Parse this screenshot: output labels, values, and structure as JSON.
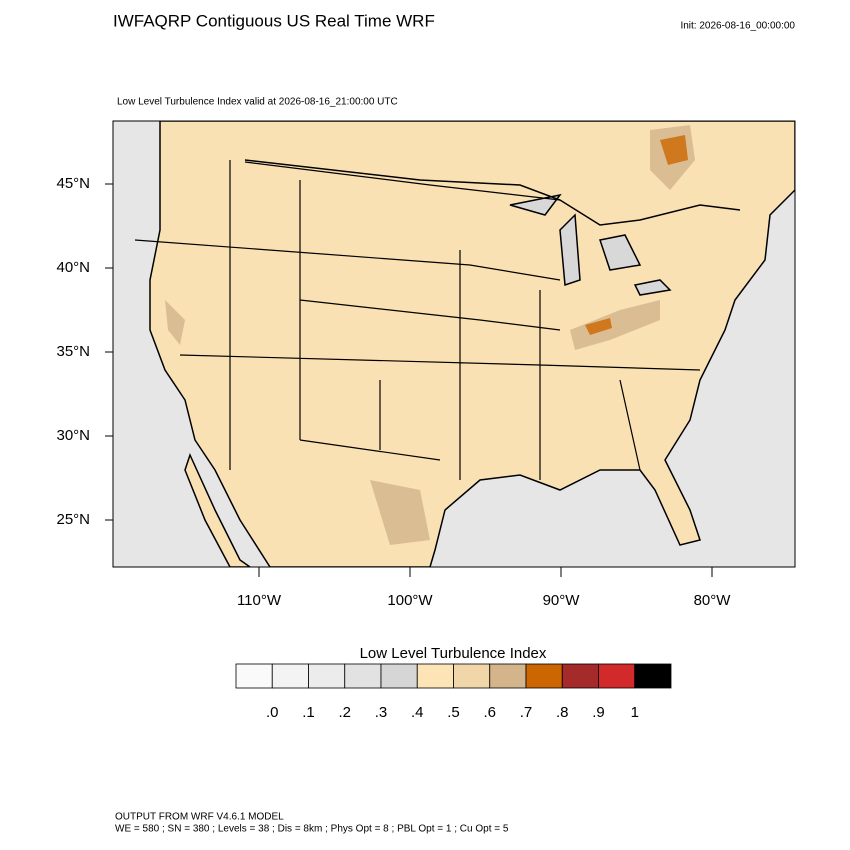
{
  "header": {
    "title": "IWFAQRP Contiguous US Real Time WRF",
    "init": "Init: 2026-08-16_00:00:00",
    "subtitle": "Low Level Turbulence Index valid at 2026-08-16_21:00:00 UTC"
  },
  "map": {
    "lat_labels": [
      "45°N",
      "40°N",
      "35°N",
      "30°N",
      "25°N"
    ],
    "lon_labels": [
      "110°W",
      "100°W",
      "90°W",
      "80°W"
    ]
  },
  "colorbar": {
    "title": "Low Level Turbulence Index",
    "colors": [
      "#fafafa",
      "#f3f3f3",
      "#ececec",
      "#e2e2e2",
      "#d6d6d6",
      "#fde4b6",
      "#f1d6a9",
      "#d3b48b",
      "#cc6600",
      "#a52a2a",
      "#d22a2a",
      "#000000"
    ],
    "labels": [
      ".0",
      ".1",
      ".2",
      ".3",
      ".4",
      ".5",
      ".6",
      ".7",
      ".8",
      ".9",
      "1"
    ]
  },
  "footer": {
    "line1": "OUTPUT FROM WRF V4.6.1 MODEL",
    "line2": "WE = 580 ; SN = 380 ; Levels = 38 ; Dis = 8km ; Phys Opt = 8 ; PBL Opt = 1 ; Cu Opt = 5"
  }
}
